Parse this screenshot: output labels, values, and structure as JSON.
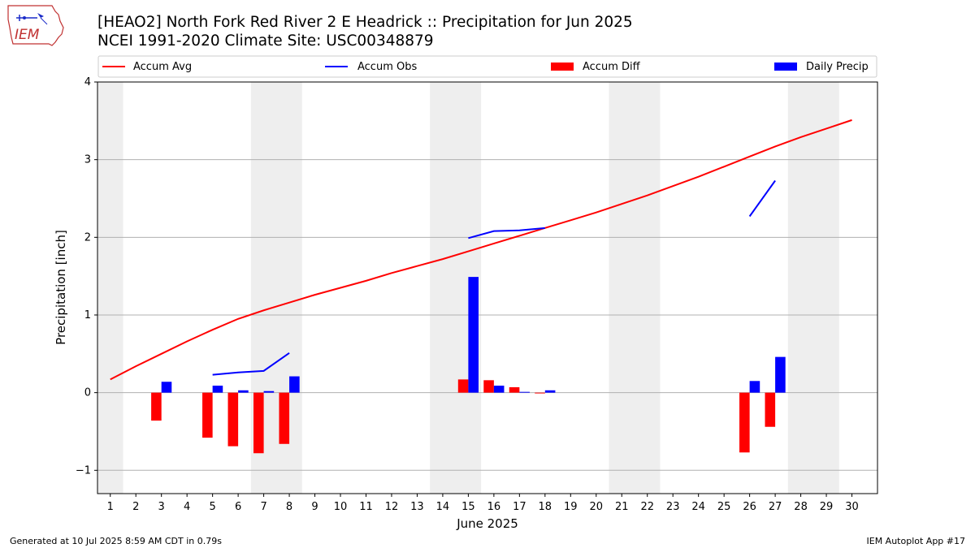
{
  "header": {
    "title_line1": "[HEAO2] North Fork Red River 2 E Headrick :: Precipitation for Jun 2025",
    "title_line2": "NCEI 1991-2020 Climate Site: USC00348879",
    "logo_text": "IEM"
  },
  "footer": {
    "generated": "Generated at 10 Jul 2025 8:59 AM CDT in 0.79s",
    "app": "IEM Autoplot App #17"
  },
  "chart_data": {
    "type": "bar",
    "title": "[HEAO2] North Fork Red River 2 E Headrick :: Precipitation for Jun 2025",
    "subtitle": "NCEI 1991-2020 Climate Site: USC00348879",
    "xlabel": "June 2025",
    "ylabel": "Precipitation [inch]",
    "ylim": [
      -1.3,
      4.0
    ],
    "xlim": [
      0.5,
      31.0
    ],
    "grid": "horizontal",
    "legend_position": "top",
    "x": [
      1,
      2,
      3,
      4,
      5,
      6,
      7,
      8,
      9,
      10,
      11,
      12,
      13,
      14,
      15,
      16,
      17,
      18,
      19,
      20,
      21,
      22,
      23,
      24,
      25,
      26,
      27,
      28,
      29,
      30
    ],
    "xticks": [
      "1",
      "2",
      "3",
      "4",
      "5",
      "6",
      "7",
      "8",
      "9",
      "10",
      "11",
      "12",
      "13",
      "14",
      "15",
      "16",
      "17",
      "18",
      "19",
      "20",
      "21",
      "22",
      "23",
      "24",
      "25",
      "26",
      "27",
      "28",
      "29",
      "30"
    ],
    "yticks": [
      -1,
      0,
      1,
      2,
      3,
      4
    ],
    "ytick_labels": [
      "−1",
      "0",
      "1",
      "2",
      "3",
      "4"
    ],
    "weekend_bands": [
      [
        0.5,
        1.5
      ],
      [
        6.5,
        8.5
      ],
      [
        13.5,
        15.5
      ],
      [
        20.5,
        22.5
      ],
      [
        27.5,
        29.5
      ]
    ],
    "series": [
      {
        "name": "Accum Avg",
        "kind": "line",
        "color": "#ff0000",
        "values": [
          0.17,
          0.34,
          0.5,
          0.66,
          0.81,
          0.95,
          1.06,
          1.16,
          1.26,
          1.35,
          1.44,
          1.54,
          1.63,
          1.72,
          1.82,
          1.92,
          2.02,
          2.12,
          2.22,
          2.32,
          2.43,
          2.54,
          2.66,
          2.78,
          2.91,
          3.04,
          3.17,
          3.29,
          3.4,
          3.51
        ]
      },
      {
        "name": "Accum Obs",
        "kind": "line",
        "color": "#0000ff",
        "values": [
          null,
          null,
          null,
          null,
          0.23,
          0.26,
          0.28,
          0.51,
          null,
          null,
          null,
          null,
          null,
          null,
          1.99,
          2.08,
          2.09,
          2.12,
          null,
          null,
          null,
          null,
          null,
          null,
          null,
          2.27,
          2.73,
          null,
          null,
          null
        ]
      },
      {
        "name": "Accum Diff",
        "kind": "bar",
        "color": "#ff0000",
        "offset": -0.2,
        "values": [
          null,
          null,
          -0.36,
          null,
          -0.58,
          -0.69,
          -0.78,
          -0.66,
          null,
          null,
          null,
          null,
          null,
          null,
          0.17,
          0.16,
          0.07,
          -0.01,
          null,
          null,
          null,
          null,
          null,
          null,
          null,
          -0.77,
          -0.44,
          null,
          null,
          null
        ]
      },
      {
        "name": "Daily Precip",
        "kind": "bar",
        "color": "#0000ff",
        "offset": 0.2,
        "values": [
          null,
          null,
          0.14,
          null,
          0.09,
          0.03,
          0.02,
          0.21,
          null,
          null,
          null,
          null,
          null,
          null,
          1.49,
          0.09,
          0.01,
          0.03,
          null,
          null,
          null,
          null,
          null,
          null,
          null,
          0.15,
          0.46,
          null,
          null,
          null
        ]
      }
    ]
  }
}
